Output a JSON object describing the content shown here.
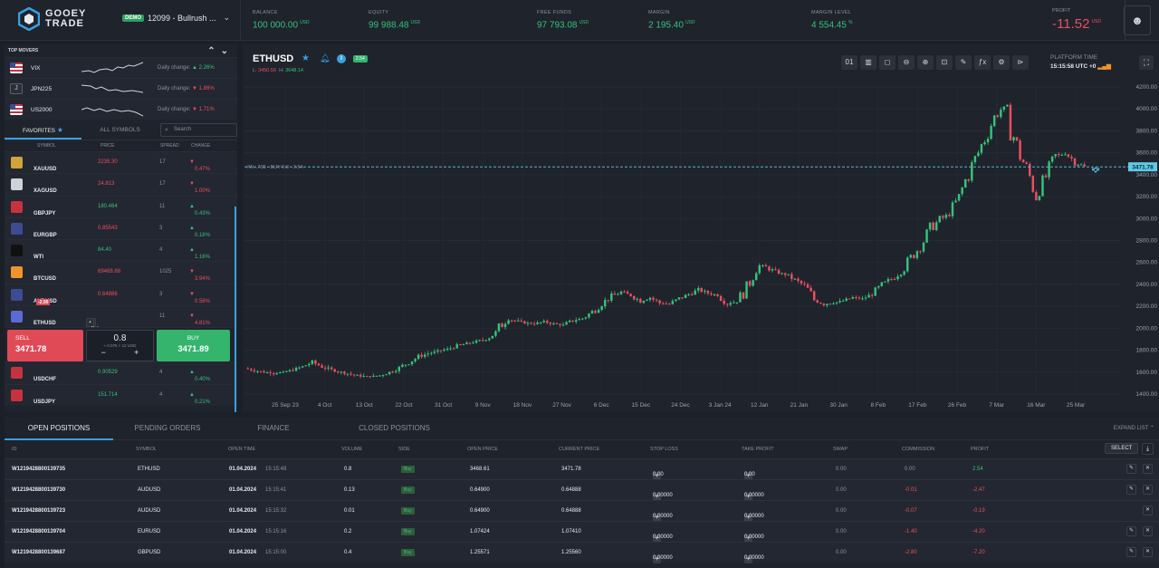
{
  "brand": {
    "line1": "GOOEY",
    "line2": "TRADE"
  },
  "account": {
    "badge": "DEMO",
    "name": "12099 - Bullrush ..."
  },
  "stats": [
    {
      "label": "BALANCE",
      "value": "100 000.00",
      "unit": "USD"
    },
    {
      "label": "EQUITY",
      "value": "99 988.48",
      "unit": "USD"
    },
    {
      "label": "FREE FUNDS",
      "value": "97 793.08",
      "unit": "USD"
    },
    {
      "label": "MARGIN",
      "value": "2 195.40",
      "unit": "USD"
    },
    {
      "label": "MARGIN LEVEL",
      "value": "4 554.45",
      "unit": "%"
    }
  ],
  "profit": {
    "label": "PROFIT",
    "value": "-11.52",
    "unit": "USD"
  },
  "top_movers": {
    "title": "TOP MOVERS",
    "items": [
      {
        "symbol": "VIX",
        "label": "Daily change:",
        "change": "2.26%",
        "dir": "up"
      },
      {
        "symbol": "JPN225",
        "label": "Daily change:",
        "change": "1.86%",
        "dir": "down"
      },
      {
        "symbol": "US2000",
        "label": "Daily change:",
        "change": "1.71%",
        "dir": "down"
      }
    ]
  },
  "tabs": {
    "favorites": "FAVORITES",
    "all": "ALL SYMBOLS",
    "search_placeholder": "Search"
  },
  "columns": {
    "symbol": "SYMBOL",
    "price": "PRICE",
    "spread": "SPREAD",
    "change": "CHANGE"
  },
  "symbols": [
    {
      "name": "XAUUSD",
      "price": "2235.30",
      "spread": "17",
      "change": "0.47%",
      "pc": "down",
      "cc": "down",
      "icon": "#d1a43a"
    },
    {
      "name": "XAGUSD",
      "price": "24.813",
      "spread": "17",
      "change": "1.00%",
      "pc": "down",
      "cc": "down",
      "icon": "#cfd3d8"
    },
    {
      "name": "GBPJPY",
      "price": "180.464",
      "spread": "11",
      "change": "0.43%",
      "pc": "up",
      "cc": "up",
      "icon": "#c8323f"
    },
    {
      "name": "EURGBP",
      "price": "0.85543",
      "spread": "3",
      "change": "0.18%",
      "pc": "down",
      "cc": "up",
      "icon": "#3d4c92"
    },
    {
      "name": "WTI",
      "price": "84.40",
      "spread": "4",
      "change": "1.16%",
      "pc": "up",
      "cc": "up",
      "icon": "#111111"
    },
    {
      "name": "BTCUSD",
      "price": "69468.88",
      "spread": "1025",
      "change": "3.94%",
      "pc": "down",
      "cc": "down",
      "icon": "#f0932b"
    },
    {
      "name": "AUDUSD",
      "price": "0.64886",
      "spread": "3",
      "change": "0.58%",
      "pc": "down",
      "cc": "down",
      "icon": "#3d4c92",
      "badge": "-2.00"
    },
    {
      "name": "ETHUSD",
      "price": "",
      "spread": "11",
      "change": "4.81%",
      "pc": "up",
      "cc": "down",
      "icon": "#5b6bd6",
      "info": "Info",
      "neworder": "New Order"
    }
  ],
  "trade": {
    "sell_label": "SELL",
    "sell_price": "3471.78",
    "buy_label": "BUY",
    "buy_price": "3471.89",
    "volume": "0.8",
    "sub": "≈ 0.075 × 12 USD",
    "minus": "−",
    "plus": "+"
  },
  "symbols2": [
    {
      "name": "USDCHF",
      "price": "0.90529",
      "spread": "4",
      "change": "0.40%",
      "icon": "#c8323f"
    },
    {
      "name": "USDJPY",
      "price": "151.714",
      "spread": "4",
      "change": "0.21%",
      "icon": "#c8323f"
    }
  ],
  "chart": {
    "symbol": "ETHUSD",
    "badge": "2.54",
    "low_label": "L:",
    "low": "3450.56",
    "high_label": "H:",
    "high": "3648.14",
    "platform_time_label": "PLATFORM TIME",
    "platform_time": "15:15:58 UTC +0",
    "tools": [
      "01",
      "▥",
      "◻",
      "⊖",
      "⊕",
      "⊡",
      "✎",
      "ƒx",
      "⚙",
      "⊳"
    ],
    "position_line_label": "#W...735 · BUY 0.8 · 2.54",
    "current_price_label": "3471.78"
  },
  "chart_data": {
    "type": "candlestick",
    "ylim": [
      1400,
      4200
    ],
    "y_ticks": [
      "4200.00",
      "4000.00",
      "3800.00",
      "3600.00",
      "3400.00",
      "3200.00",
      "3000.00",
      "2800.00",
      "2600.00",
      "2400.00",
      "2200.00",
      "2000.00",
      "1800.00",
      "1600.00",
      "1400.00"
    ],
    "x_ticks": [
      "25 Sep 23",
      "4 Oct",
      "13 Oct",
      "22 Oct",
      "31 Oct",
      "9 Nov",
      "18 Nov",
      "27 Nov",
      "6 Dec",
      "15 Dec",
      "24 Dec",
      "3 Jan 24",
      "12 Jan",
      "21 Jan",
      "30 Jan",
      "8 Feb",
      "17 Feb",
      "26 Feb",
      "7 Mar",
      "16 Mar",
      "25 Mar"
    ],
    "closes": [
      1635,
      1615,
      1600,
      1590,
      1600,
      1620,
      1650,
      1690,
      1650,
      1620,
      1600,
      1580,
      1565,
      1560,
      1570,
      1600,
      1640,
      1690,
      1740,
      1770,
      1790,
      1810,
      1840,
      1860,
      1880,
      1900,
      1960,
      2080,
      2070,
      2050,
      2040,
      2060,
      2040,
      2030,
      2070,
      2090,
      2150,
      2230,
      2290,
      2330,
      2300,
      2250,
      2280,
      2230,
      2220,
      2270,
      2310,
      2350,
      2320,
      2300,
      2230,
      2240,
      2370,
      2580,
      2560,
      2510,
      2490,
      2440,
      2390,
      2260,
      2220,
      2230,
      2250,
      2280,
      2270,
      2310,
      2390,
      2450,
      2520,
      2640,
      2750,
      2900,
      2990,
      3040,
      3190,
      3420,
      3600,
      3800,
      3980,
      4020,
      3620,
      3460,
      3220,
      3380,
      3560,
      3600,
      3520,
      3470
    ]
  },
  "bottom": {
    "tabs": [
      "OPEN POSITIONS",
      "PENDING ORDERS",
      "FINANCE",
      "CLOSED POSITIONS"
    ],
    "expand": "EXPAND LIST",
    "headers": [
      "ID",
      "SYMBOL",
      "OPEN TIME",
      "VOLUME",
      "SIDE",
      "OPEN PRICE",
      "CURRENT PRICE",
      "STOP LOSS",
      "TAKE PROFIT",
      "SWAP",
      "COMMISSION",
      "PROFIT"
    ],
    "select": "SELECT",
    "rows": [
      {
        "id": "W121942880013973​5",
        "symbol": "ETHUSD",
        "time": "01.04.2024",
        "time2": "15:15:48",
        "volume": "0.8",
        "side": "Buy",
        "open": "3468.61",
        "current": "3471.78",
        "sl": "0.00",
        "tp": "0.00",
        "swap": "0.00",
        "commission": "0.00",
        "profit": "2.54",
        "pcol": "up",
        "ccol": "none"
      },
      {
        "id": "W121942880013973​0",
        "symbol": "AUDUSD",
        "time": "01.04.2024",
        "time2": "15:15:41",
        "volume": "0.13",
        "side": "Buy",
        "open": "0.64900",
        "current": "0.64888",
        "sl": "0.00000",
        "tp": "0.00000",
        "swap": "0.00",
        "commission": "-0.01",
        "profit": "-2.47",
        "pcol": "down",
        "ccol": "down"
      },
      {
        "id": "W121942880013972​3",
        "symbol": "AUDUSD",
        "time": "01.04.2024",
        "time2": "15:15:32",
        "volume": "0.01",
        "side": "Buy",
        "open": "0.64900",
        "current": "0.64888",
        "sl": "0.00000",
        "tp": "0.00000",
        "swap": "0.00",
        "commission": "-0.07",
        "profit": "-0.19",
        "pcol": "down",
        "ccol": "down"
      },
      {
        "id": "W121942880013970​4",
        "symbol": "EURUSD",
        "time": "01.04.2024",
        "time2": "15:15:16",
        "volume": "0.2",
        "side": "Buy",
        "open": "1.07424",
        "current": "1.07410",
        "sl": "0.00000",
        "tp": "0.00000",
        "swap": "0.00",
        "commission": "-1.40",
        "profit": "-4.20",
        "pcol": "down",
        "ccol": "down"
      },
      {
        "id": "W121942880013968​7",
        "symbol": "GBPUSD",
        "time": "01.04.2024",
        "time2": "15:15:00",
        "volume": "0.4",
        "side": "Buy",
        "open": "1.25571",
        "current": "1.25560",
        "sl": "0.00000",
        "tp": "0.00000",
        "swap": "0.00",
        "commission": "-2.80",
        "profit": "-7.20",
        "pcol": "down",
        "ccol": "down"
      }
    ]
  }
}
